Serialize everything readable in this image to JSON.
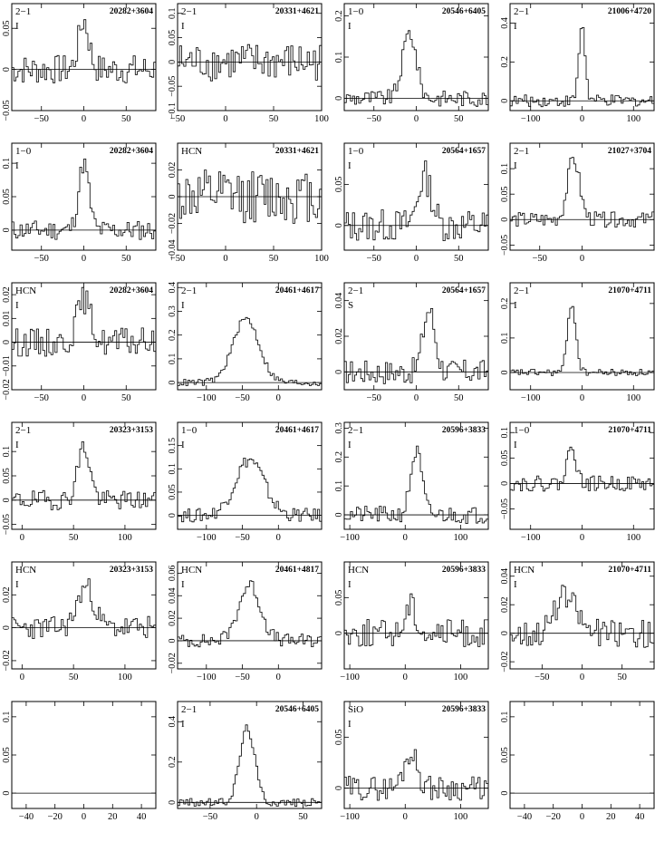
{
  "chart_data": [
    {
      "type": "line",
      "line": "2−1",
      "pol": "I",
      "source": "20282+3604",
      "xlim": [
        -85,
        85
      ],
      "xticks": [
        -50,
        0,
        50
      ],
      "ylim": [
        -0.05,
        0.08
      ],
      "yticks": [
        -0.05,
        0,
        0.05
      ],
      "ytick_labels": [
        "−0.05",
        "0",
        "0.05"
      ],
      "peak": {
        "x": 0,
        "y": 0.06,
        "w": 6
      },
      "noise": 0.018
    },
    {
      "type": "line",
      "line": "2−1",
      "pol": "I",
      "source": "20331+4621",
      "xlim": [
        -50,
        100
      ],
      "xticks": [
        -50,
        0,
        50,
        100
      ],
      "ylim": [
        -0.1,
        0.12
      ],
      "yticks": [
        -0.1,
        -0.05,
        0,
        0.05,
        0.1
      ],
      "ytick_labels": [
        "−0.1",
        "−0.05",
        "0",
        "0.05",
        "0.1"
      ],
      "peak": {
        "x": 0,
        "y": 0,
        "w": 5
      },
      "noise": 0.04
    },
    {
      "type": "line",
      "line": "1−0",
      "pol": "I",
      "source": "20546+6405",
      "xlim": [
        -85,
        85
      ],
      "xticks": [
        -50,
        0,
        50
      ],
      "ylim": [
        -0.03,
        0.23
      ],
      "yticks": [
        0,
        0.1,
        0.2
      ],
      "ytick_labels": [
        "0",
        "0.1",
        "0.2"
      ],
      "peak": {
        "x": -8,
        "y": 0.16,
        "w": 8
      },
      "noise": 0.02
    },
    {
      "type": "line",
      "line": "2−1",
      "pol": "I",
      "source": "21006+4720",
      "xlim": [
        -140,
        140
      ],
      "xticks": [
        -100,
        0,
        100
      ],
      "ylim": [
        -0.05,
        0.5
      ],
      "yticks": [
        0,
        0.2,
        0.4
      ],
      "ytick_labels": [
        "0",
        "0.2",
        "0.4"
      ],
      "peak": {
        "x": 0,
        "y": 0.4,
        "w": 6
      },
      "noise": 0.03
    },
    {
      "type": "line",
      "line": "1−0",
      "pol": "I",
      "source": "20282+3604",
      "xlim": [
        -85,
        85
      ],
      "xticks": [
        -50,
        0,
        50
      ],
      "ylim": [
        -0.03,
        0.13
      ],
      "yticks": [
        0,
        0.05,
        0.1
      ],
      "ytick_labels": [
        "0",
        "0.05",
        "0.1"
      ],
      "peak": {
        "x": 0,
        "y": 0.1,
        "w": 6
      },
      "noise": 0.015
    },
    {
      "type": "line",
      "line": "HCN",
      "pol": "",
      "source": "20331+4621",
      "xlim": [
        -50,
        100
      ],
      "xticks": [
        -50,
        0,
        50,
        100
      ],
      "ylim": [
        -0.04,
        0.04
      ],
      "yticks": [
        -0.04,
        -0.02,
        0,
        0.02
      ],
      "ytick_labels": [
        "−0.04",
        "−0.02",
        "0",
        "0.02"
      ],
      "peak": {
        "x": 0,
        "y": 0,
        "w": 5
      },
      "noise": 0.02
    },
    {
      "type": "line",
      "line": "1−0",
      "pol": "I",
      "source": "20564+1657",
      "xlim": [
        -85,
        85
      ],
      "xticks": [
        -50,
        0,
        50
      ],
      "ylim": [
        -0.03,
        0.1
      ],
      "yticks": [
        0,
        0.05
      ],
      "ytick_labels": [
        "0",
        "0.05"
      ],
      "peak": {
        "x": 10,
        "y": 0.06,
        "w": 8
      },
      "noise": 0.02
    },
    {
      "type": "line",
      "line": "2−1",
      "pol": "I",
      "source": "21027+3704",
      "xlim": [
        -85,
        85
      ],
      "xticks": [
        -50,
        0
      ],
      "ylim": [
        -0.06,
        0.15
      ],
      "yticks": [
        -0.05,
        0,
        0.05,
        0.1
      ],
      "ytick_labels": [
        "−0.05",
        "0",
        "0.05",
        "0.1"
      ],
      "peak": {
        "x": -10,
        "y": 0.12,
        "w": 7
      },
      "noise": 0.015
    },
    {
      "type": "line",
      "line": "HCN",
      "pol": "I",
      "source": "20282+3604",
      "xlim": [
        -85,
        85
      ],
      "xticks": [
        -50,
        0,
        50
      ],
      "ylim": [
        -0.02,
        0.025
      ],
      "yticks": [
        -0.02,
        -0.01,
        0,
        0.01,
        0.02
      ],
      "ytick_labels": [
        "−0.02",
        "−0.01",
        "0",
        "0.01",
        "0.02"
      ],
      "peak": {
        "x": 0,
        "y": 0.018,
        "w": 8
      },
      "noise": 0.006
    },
    {
      "type": "line",
      "line": "2−1",
      "pol": "I",
      "source": "20461+4617",
      "xlim": [
        -140,
        60
      ],
      "xticks": [
        -100,
        -50,
        0
      ],
      "ylim": [
        -0.03,
        0.42
      ],
      "yticks": [
        0,
        0.1,
        0.2,
        0.3,
        0.4
      ],
      "ytick_labels": [
        "0",
        "0.1",
        "0.2",
        "0.3",
        "0.4"
      ],
      "peak": {
        "x": -45,
        "y": 0.27,
        "w": 18
      },
      "noise": 0.015
    },
    {
      "type": "line",
      "line": "2−1",
      "pol": "S",
      "source": "20564+1657",
      "xlim": [
        -85,
        85
      ],
      "xticks": [
        -50,
        0,
        50
      ],
      "ylim": [
        -0.01,
        0.05
      ],
      "yticks": [
        0,
        0.02,
        0.04
      ],
      "ytick_labels": [
        "0",
        "0.02",
        "0.04"
      ],
      "peak": {
        "x": 15,
        "y": 0.035,
        "w": 7
      },
      "noise": 0.007
    },
    {
      "type": "line",
      "line": "2−1",
      "pol": "I",
      "source": "21070+4711",
      "xlim": [
        -140,
        140
      ],
      "xticks": [
        -100,
        0,
        100
      ],
      "ylim": [
        -0.05,
        0.26
      ],
      "yticks": [
        0,
        0.1,
        0.2
      ],
      "ytick_labels": [
        "0",
        "0.1",
        "0.2"
      ],
      "peak": {
        "x": -20,
        "y": 0.2,
        "w": 8
      },
      "noise": 0.01
    },
    {
      "type": "line",
      "line": "2−1",
      "pol": "I",
      "source": "20323+3153",
      "xlim": [
        -10,
        130
      ],
      "xticks": [
        0,
        50,
        100
      ],
      "ylim": [
        -0.06,
        0.16
      ],
      "yticks": [
        -0.05,
        0,
        0.05,
        0.1
      ],
      "ytick_labels": [
        "−0.05",
        "0",
        "0.05",
        "0.1"
      ],
      "peak": {
        "x": 60,
        "y": 0.11,
        "w": 6
      },
      "noise": 0.02
    },
    {
      "type": "line",
      "line": "1−0",
      "pol": "I",
      "source": "20461+4617",
      "xlim": [
        -140,
        60
      ],
      "xticks": [
        -100,
        -50,
        0
      ],
      "ylim": [
        -0.03,
        0.2
      ],
      "yticks": [
        0,
        0.05,
        0.1,
        0.15
      ],
      "ytick_labels": [
        "0",
        "0.05",
        "0.1",
        "0.15"
      ],
      "peak": {
        "x": -40,
        "y": 0.12,
        "w": 20
      },
      "noise": 0.015
    },
    {
      "type": "line",
      "line": "2−1",
      "pol": "I",
      "source": "20596+3833",
      "xlim": [
        -110,
        150
      ],
      "xticks": [
        -100,
        0,
        100
      ],
      "ylim": [
        -0.05,
        0.32
      ],
      "yticks": [
        0,
        0.1,
        0.2,
        0.3
      ],
      "ytick_labels": [
        "0",
        "0.1",
        "0.2",
        "0.3"
      ],
      "peak": {
        "x": 20,
        "y": 0.22,
        "w": 10
      },
      "noise": 0.03
    },
    {
      "type": "line",
      "line": "1−0",
      "pol": "I",
      "source": "21070+4711",
      "xlim": [
        -140,
        140
      ],
      "xticks": [
        -100,
        0,
        100
      ],
      "ylim": [
        -0.09,
        0.12
      ],
      "yticks": [
        -0.05,
        0,
        0.05,
        0.1
      ],
      "ytick_labels": [
        "−0.05",
        "0",
        "0.05",
        "0.1"
      ],
      "peak": {
        "x": -20,
        "y": 0.08,
        "w": 8
      },
      "noise": 0.015
    },
    {
      "type": "line",
      "line": "HCN",
      "pol": "I",
      "source": "20323+3153",
      "xlim": [
        -10,
        130
      ],
      "xticks": [
        0,
        50,
        100
      ],
      "ylim": [
        -0.025,
        0.04
      ],
      "yticks": [
        -0.02,
        0,
        0.02
      ],
      "ytick_labels": [
        "−0.02",
        "0",
        "0.02"
      ],
      "peak": {
        "x": 62,
        "y": 0.025,
        "w": 8
      },
      "noise": 0.007
    },
    {
      "type": "line",
      "line": "HCN",
      "pol": "I",
      "source": "20461+4817",
      "xlim": [
        -140,
        60
      ],
      "xticks": [
        -100,
        -50,
        0
      ],
      "ylim": [
        -0.025,
        0.07
      ],
      "yticks": [
        -0.02,
        0,
        0.02,
        0.04,
        0.06
      ],
      "ytick_labels": [
        "−0.02",
        "0",
        "0.02",
        "0.04",
        "0.06"
      ],
      "peak": {
        "x": -40,
        "y": 0.05,
        "w": 15
      },
      "noise": 0.006
    },
    {
      "type": "line",
      "line": "HCN",
      "pol": "I",
      "source": "20596+3833",
      "xlim": [
        -110,
        150
      ],
      "xticks": [
        -100,
        0,
        100
      ],
      "ylim": [
        -0.05,
        0.1
      ],
      "yticks": [
        0,
        0.05
      ],
      "ytick_labels": [
        "0",
        "0.05"
      ],
      "peak": {
        "x": 10,
        "y": 0.04,
        "w": 10
      },
      "noise": 0.02
    },
    {
      "type": "line",
      "line": "HCN",
      "pol": "I",
      "source": "21070+4711",
      "xlim": [
        -90,
        90
      ],
      "xticks": [
        -50,
        0,
        50
      ],
      "ylim": [
        -0.025,
        0.05
      ],
      "yticks": [
        -0.02,
        0,
        0.02,
        0.04
      ],
      "ytick_labels": [
        "−0.02",
        "0",
        "0.02",
        "0.04"
      ],
      "peak": {
        "x": -20,
        "y": 0.025,
        "w": 14
      },
      "noise": 0.01
    },
    {
      "type": "line",
      "line": "",
      "pol": "",
      "source": "",
      "xlim": [
        -50,
        50
      ],
      "xticks": [
        -40,
        -20,
        0,
        20,
        40
      ],
      "ylim": [
        -0.02,
        0.12
      ],
      "yticks": [
        0,
        0.05,
        0.1
      ],
      "ytick_labels": [
        "0",
        "0.05",
        "0.1"
      ],
      "empty": true
    },
    {
      "type": "line",
      "line": "2−1",
      "pol": "I",
      "source": "20546+6405",
      "xlim": [
        -85,
        70
      ],
      "xticks": [
        -50,
        0,
        50
      ],
      "ylim": [
        -0.03,
        0.5
      ],
      "yticks": [
        0,
        0.2,
        0.4
      ],
      "ytick_labels": [
        "0",
        "0.2",
        "0.4"
      ],
      "peak": {
        "x": -10,
        "y": 0.37,
        "w": 8
      },
      "noise": 0.02
    },
    {
      "type": "line",
      "line": "SiO",
      "pol": "I",
      "source": "20596+3833",
      "xlim": [
        -110,
        150
      ],
      "xticks": [
        -100,
        0,
        100
      ],
      "ylim": [
        -0.02,
        0.085
      ],
      "yticks": [
        0,
        0.05
      ],
      "ytick_labels": [
        "0",
        "0.05"
      ],
      "peak": {
        "x": 10,
        "y": 0.035,
        "w": 12
      },
      "noise": 0.012
    },
    {
      "type": "line",
      "line": "",
      "pol": "",
      "source": "",
      "xlim": [
        -50,
        50
      ],
      "xticks": [
        -40,
        -20,
        0,
        20,
        40
      ],
      "ylim": [
        -0.02,
        0.12
      ],
      "yticks": [
        0,
        0.05,
        0.1
      ],
      "ytick_labels": [
        "0",
        "0.05",
        "0.1"
      ],
      "empty": true
    }
  ]
}
